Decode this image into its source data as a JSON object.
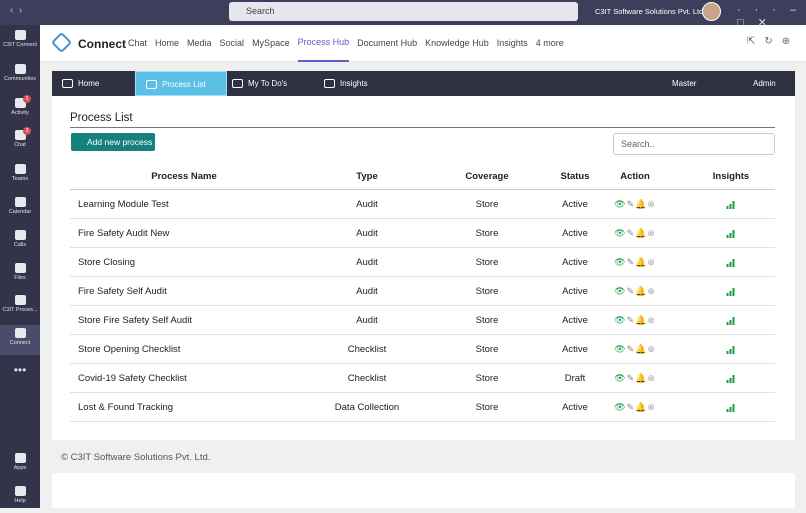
{
  "titlebar": {
    "search": "Search",
    "org": "C3IT Software Solutions Pvt. Ltd."
  },
  "rail": {
    "items": [
      {
        "label": "C3IT Connect"
      },
      {
        "label": "Communities"
      },
      {
        "label": "Activity",
        "badge": "1"
      },
      {
        "label": "Chat",
        "badge": "3"
      },
      {
        "label": "Teams"
      },
      {
        "label": "Calendar"
      },
      {
        "label": "Calls"
      },
      {
        "label": "Files"
      },
      {
        "label": "C3IT Proces..."
      },
      {
        "label": "Connect"
      }
    ],
    "bottom": [
      {
        "label": "Apps"
      },
      {
        "label": "Help"
      }
    ]
  },
  "app": {
    "name": "Connect",
    "tabs": [
      "Chat",
      "Home",
      "Media",
      "Social",
      "MySpace",
      "Process Hub",
      "Document Hub",
      "Knowledge Hub",
      "Insights",
      "4 more"
    ]
  },
  "nav": {
    "items": [
      "Home",
      "Process List",
      "My To Do's",
      "Insights"
    ],
    "master": "Master",
    "user": "Admin"
  },
  "content": {
    "title": "Process List",
    "add_button": "Add new process",
    "search_placeholder": "Search..",
    "table": {
      "headers": [
        "Process Name",
        "Type",
        "Coverage",
        "Status",
        "Action",
        "Insights"
      ],
      "rows": [
        [
          "Learning Module Test",
          "Audit",
          "Store",
          "Active"
        ],
        [
          "Fire Safety Audit New",
          "Audit",
          "Store",
          "Active"
        ],
        [
          "Store Closing",
          "Audit",
          "Store",
          "Active"
        ],
        [
          "Fire Safety Self Audit",
          "Audit",
          "Store",
          "Active"
        ],
        [
          "Store Fire Safety Self Audit",
          "Audit",
          "Store",
          "Active"
        ],
        [
          "Store Opening Checklist",
          "Checklist",
          "Store",
          "Active"
        ],
        [
          "Covid-19 Safety Checklist",
          "Checklist",
          "Store",
          "Draft"
        ],
        [
          "Lost & Found Tracking",
          "Data Collection",
          "Store",
          "Active"
        ]
      ]
    }
  },
  "footer": {
    "text": "© C3IT Software Solutions Pvt. Ltd."
  }
}
